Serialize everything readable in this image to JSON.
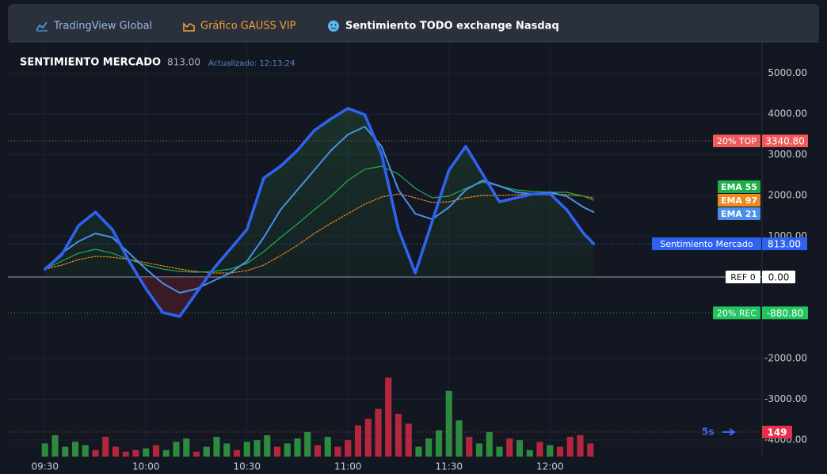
{
  "tabs": [
    {
      "label": "TradingView Global",
      "color": "#9ab8e6"
    },
    {
      "label": "Gráfico GAUSS VIP",
      "color": "#f0a030"
    },
    {
      "label": "Sentimiento TODO exchange Nasdaq",
      "color": "#ffffff"
    }
  ],
  "chart_data": {
    "type": "line",
    "title": "SENTIMIENTO MERCADO",
    "subtitle": "Actualizado: 12:13:24",
    "x": [
      570,
      575,
      580,
      585,
      590,
      595,
      600,
      605,
      610,
      615,
      620,
      625,
      630,
      635,
      640,
      645,
      650,
      655,
      660,
      665,
      670,
      675,
      680,
      685,
      690,
      695,
      700,
      705,
      710,
      715,
      720,
      725,
      730,
      733
    ],
    "xlim": [
      559,
      783
    ],
    "xticks": [
      {
        "value": 570,
        "label": "09:30"
      },
      {
        "value": 600,
        "label": "10:00"
      },
      {
        "value": 630,
        "label": "10:30"
      },
      {
        "value": 660,
        "label": "11:00"
      },
      {
        "value": 690,
        "label": "11:30"
      },
      {
        "value": 720,
        "label": "12:00"
      }
    ],
    "ylim": [
      -4400,
      5700
    ],
    "yticks": [
      {
        "value": 5000,
        "label": "5000.00"
      },
      {
        "value": 4000,
        "label": "4000.00"
      },
      {
        "value": 3000,
        "label": "3000.00"
      },
      {
        "value": 2000,
        "label": "2000.00"
      },
      {
        "value": 1000,
        "label": "1000.00"
      },
      {
        "value": -2000,
        "label": "-2000.00"
      },
      {
        "value": -3000,
        "label": "-3000.00"
      },
      {
        "value": -4000,
        "label": "-4000.00"
      }
    ],
    "grid": true,
    "series": [
      {
        "name": "Sentimiento Mercado",
        "color": "#2f62f0",
        "last_label": "813.00",
        "values": [
          194,
          544,
          1262,
          1592,
          1165,
          388,
          -291,
          -874,
          -971,
          -388,
          194,
          680,
          1165,
          2427,
          2718,
          3107,
          3592,
          3883,
          4136,
          3981,
          3010,
          1165,
          97,
          1359,
          2621,
          3204,
          2524,
          1845,
          1942,
          2039,
          2039,
          1650,
          1068,
          813
        ]
      },
      {
        "name": "EMA 55",
        "color": "#20b04a",
        "values": [
          194,
          388,
          583,
          680,
          583,
          427,
          291,
          194,
          136,
          117,
          136,
          194,
          330,
          621,
          971,
          1301,
          1650,
          1981,
          2369,
          2641,
          2718,
          2524,
          2175,
          1942,
          1981,
          2175,
          2330,
          2233,
          2136,
          2097,
          2078,
          2078,
          1981,
          1883
        ]
      },
      {
        "name": "EMA 97",
        "color": "#f08a1c",
        "values": [
          194,
          291,
          427,
          505,
          485,
          427,
          350,
          272,
          194,
          136,
          97,
          97,
          155,
          291,
          524,
          777,
          1068,
          1320,
          1553,
          1786,
          1961,
          2039,
          1942,
          1825,
          1845,
          1942,
          2000,
          2000,
          2019,
          2039,
          2039,
          2019,
          1981,
          1942
        ]
      },
      {
        "name": "EMA 21",
        "color": "#4a90e8",
        "values": [
          194,
          583,
          874,
          1068,
          971,
          583,
          194,
          -155,
          -388,
          -291,
          -97,
          97,
          388,
          971,
          1650,
          2136,
          2621,
          3107,
          3495,
          3689,
          3204,
          2136,
          1553,
          1417,
          1709,
          2136,
          2369,
          2233,
          2078,
          2039,
          2078,
          1981,
          1709,
          1592
        ]
      }
    ],
    "levels": [
      {
        "label": "20% TOP",
        "value": 3340.8,
        "value_label": "3340.80",
        "color": "#f05a5a"
      },
      {
        "label": "REF 0",
        "value": 0,
        "value_label": "0.00",
        "color": "#ffffff"
      },
      {
        "label": "20% REC",
        "value": -880.8,
        "value_label": "-880.80",
        "color": "#22c55e"
      }
    ],
    "volume": {
      "interval_label": "5s",
      "ylim": [
        0,
        500
      ],
      "marker": 149,
      "x": [
        570,
        573,
        576,
        579,
        582,
        585,
        588,
        591,
        594,
        597,
        600,
        603,
        606,
        609,
        612,
        615,
        618,
        621,
        624,
        627,
        630,
        633,
        636,
        639,
        642,
        645,
        648,
        651,
        654,
        657,
        660,
        663,
        666,
        669,
        672,
        675,
        678,
        681,
        684,
        687,
        690,
        693,
        696,
        699,
        702,
        705,
        708,
        711,
        714,
        717,
        720,
        723,
        726,
        729,
        732
      ],
      "values": [
        80,
        130,
        60,
        90,
        70,
        40,
        120,
        60,
        30,
        40,
        50,
        70,
        40,
        90,
        110,
        30,
        60,
        120,
        80,
        40,
        90,
        100,
        130,
        60,
        80,
        110,
        150,
        70,
        120,
        60,
        100,
        190,
        230,
        290,
        480,
        260,
        200,
        60,
        110,
        160,
        400,
        220,
        120,
        80,
        150,
        60,
        110,
        100,
        40,
        90,
        70,
        60,
        120,
        130,
        80
      ],
      "colors": [
        "#2d8a3e",
        "#2d8a3e",
        "#2d8a3e",
        "#2d8a3e",
        "#2d8a3e",
        "#b3263e",
        "#b3263e",
        "#b3263e",
        "#b3263e",
        "#b3263e",
        "#2d8a3e",
        "#b3263e",
        "#2d8a3e",
        "#2d8a3e",
        "#2d8a3e",
        "#b3263e",
        "#2d8a3e",
        "#2d8a3e",
        "#2d8a3e",
        "#b3263e",
        "#2d8a3e",
        "#2d8a3e",
        "#2d8a3e",
        "#b3263e",
        "#2d8a3e",
        "#2d8a3e",
        "#2d8a3e",
        "#b3263e",
        "#2d8a3e",
        "#b3263e",
        "#b3263e",
        "#b3263e",
        "#b3263e",
        "#b3263e",
        "#b3263e",
        "#b3263e",
        "#b3263e",
        "#2d8a3e",
        "#2d8a3e",
        "#2d8a3e",
        "#2d8a3e",
        "#2d8a3e",
        "#b3263e",
        "#2d8a3e",
        "#2d8a3e",
        "#2d8a3e",
        "#b3263e",
        "#2d8a3e",
        "#2d8a3e",
        "#b3263e",
        "#2d8a3e",
        "#b3263e",
        "#b3263e",
        "#b3263e",
        "#b3263e"
      ]
    }
  }
}
